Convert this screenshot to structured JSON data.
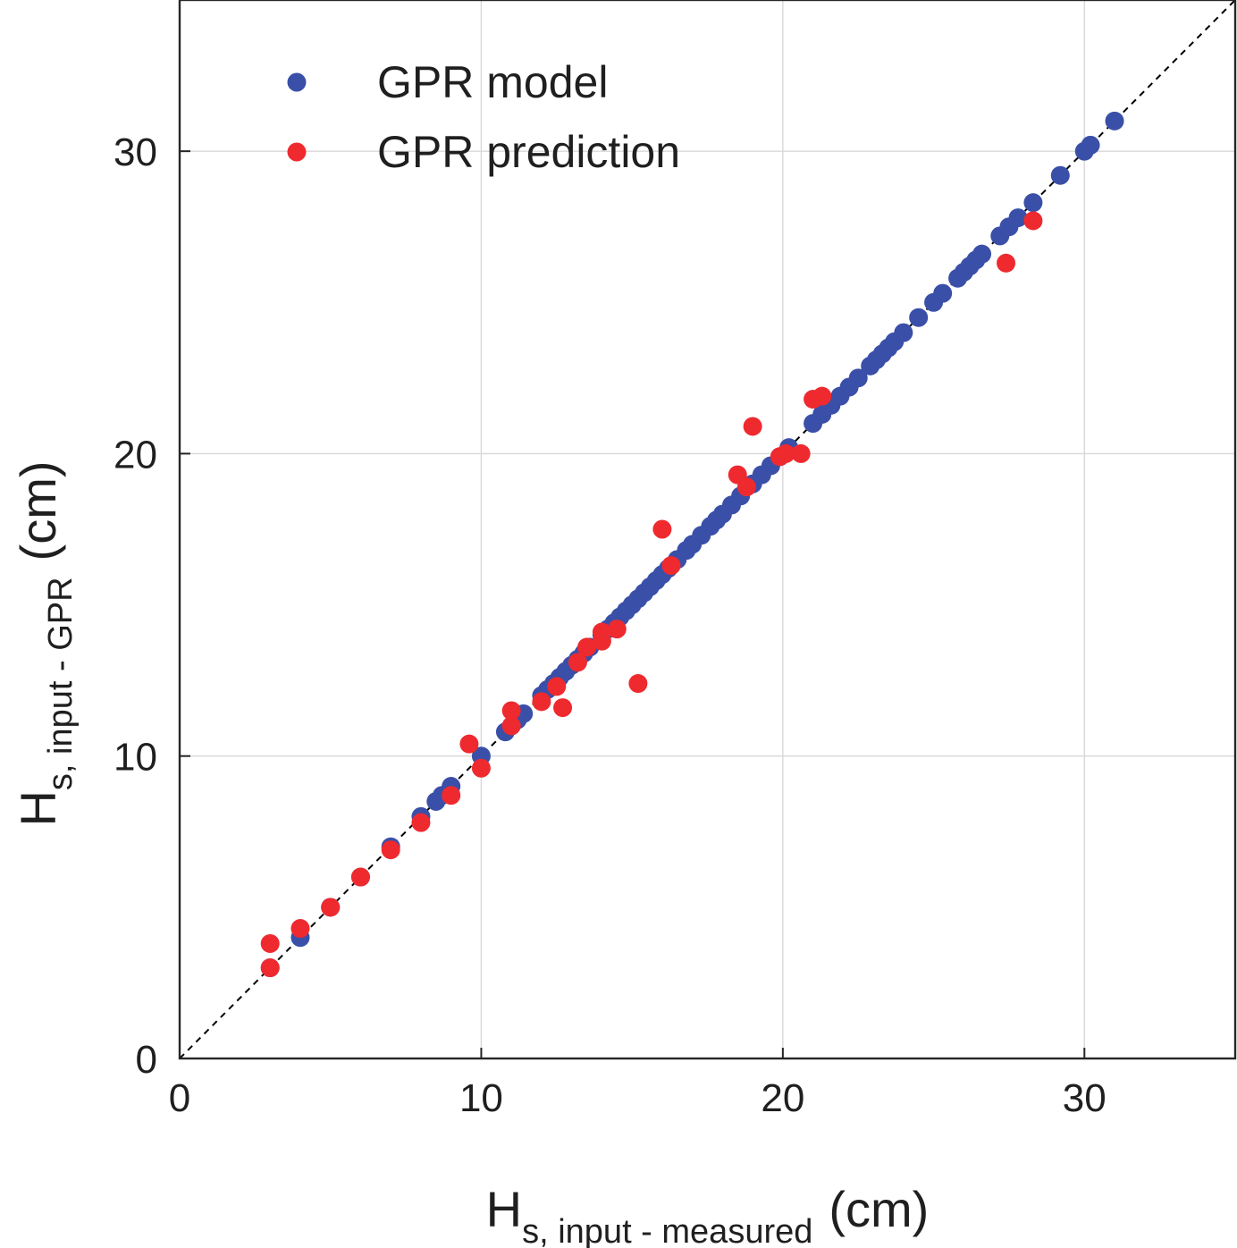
{
  "chart_data": {
    "type": "scatter",
    "title": "",
    "xlabel": {
      "main": "H",
      "sub": "s, input - measured",
      "unit": "(cm)"
    },
    "ylabel": {
      "main": "H",
      "sub": "s, input - GPR",
      "unit": "(cm)"
    },
    "xlim": [
      0,
      35
    ],
    "ylim": [
      0,
      35
    ],
    "xticks": [
      0,
      10,
      20,
      30
    ],
    "yticks": [
      0,
      10,
      20,
      30
    ],
    "xtick_labels": [
      "0",
      "10",
      "20",
      "30"
    ],
    "ytick_labels": [
      "0",
      "10",
      "20",
      "30"
    ],
    "grid": true,
    "reference_line": {
      "style": "dashed",
      "from": [
        0,
        0
      ],
      "to": [
        35,
        35
      ],
      "color": "#000000"
    },
    "legend": {
      "position": "top-left"
    },
    "series": [
      {
        "name": "GPR model",
        "color": "#3a4fa8",
        "points": [
          [
            3.0,
            3.0
          ],
          [
            4.0,
            4.0
          ],
          [
            5.0,
            5.0
          ],
          [
            6.0,
            6.0
          ],
          [
            7.0,
            7.0
          ],
          [
            8.0,
            8.0
          ],
          [
            8.5,
            8.5
          ],
          [
            8.7,
            8.7
          ],
          [
            9.0,
            9.0
          ],
          [
            10.0,
            10.0
          ],
          [
            10.8,
            10.8
          ],
          [
            11.0,
            11.0
          ],
          [
            11.2,
            11.2
          ],
          [
            11.4,
            11.4
          ],
          [
            12.0,
            12.0
          ],
          [
            12.2,
            12.2
          ],
          [
            12.4,
            12.4
          ],
          [
            12.6,
            12.6
          ],
          [
            12.8,
            12.8
          ],
          [
            13.0,
            13.0
          ],
          [
            13.2,
            13.2
          ],
          [
            13.4,
            13.4
          ],
          [
            13.6,
            13.6
          ],
          [
            14.0,
            14.0
          ],
          [
            14.2,
            14.2
          ],
          [
            14.4,
            14.4
          ],
          [
            14.6,
            14.6
          ],
          [
            14.8,
            14.8
          ],
          [
            15.0,
            15.0
          ],
          [
            15.2,
            15.2
          ],
          [
            15.4,
            15.4
          ],
          [
            15.6,
            15.6
          ],
          [
            15.8,
            15.8
          ],
          [
            16.0,
            16.0
          ],
          [
            16.2,
            16.2
          ],
          [
            16.5,
            16.5
          ],
          [
            16.8,
            16.8
          ],
          [
            17.0,
            17.0
          ],
          [
            17.3,
            17.3
          ],
          [
            17.6,
            17.6
          ],
          [
            17.8,
            17.8
          ],
          [
            18.0,
            18.0
          ],
          [
            18.3,
            18.3
          ],
          [
            18.6,
            18.6
          ],
          [
            19.0,
            19.0
          ],
          [
            19.3,
            19.3
          ],
          [
            19.6,
            19.6
          ],
          [
            19.9,
            19.9
          ],
          [
            20.2,
            20.2
          ],
          [
            21.0,
            21.0
          ],
          [
            21.3,
            21.3
          ],
          [
            21.6,
            21.6
          ],
          [
            21.9,
            21.9
          ],
          [
            22.2,
            22.2
          ],
          [
            22.5,
            22.5
          ],
          [
            22.9,
            22.9
          ],
          [
            23.1,
            23.1
          ],
          [
            23.3,
            23.3
          ],
          [
            23.5,
            23.5
          ],
          [
            23.7,
            23.7
          ],
          [
            24.0,
            24.0
          ],
          [
            24.5,
            24.5
          ],
          [
            25.0,
            25.0
          ],
          [
            25.3,
            25.3
          ],
          [
            25.8,
            25.8
          ],
          [
            26.0,
            26.0
          ],
          [
            26.2,
            26.2
          ],
          [
            26.4,
            26.4
          ],
          [
            26.6,
            26.6
          ],
          [
            27.2,
            27.2
          ],
          [
            27.5,
            27.5
          ],
          [
            27.8,
            27.8
          ],
          [
            28.3,
            28.3
          ],
          [
            29.2,
            29.2
          ],
          [
            30.0,
            30.0
          ],
          [
            30.2,
            30.2
          ],
          [
            31.0,
            31.0
          ]
        ]
      },
      {
        "name": "GPR prediction",
        "color": "#ee2a2f",
        "points": [
          [
            3.0,
            3.8
          ],
          [
            3.0,
            3.0
          ],
          [
            4.0,
            4.3
          ],
          [
            5.0,
            5.0
          ],
          [
            6.0,
            6.0
          ],
          [
            7.0,
            6.9
          ],
          [
            8.0,
            7.8
          ],
          [
            9.0,
            8.7
          ],
          [
            9.6,
            10.4
          ],
          [
            10.0,
            9.6
          ],
          [
            11.0,
            11.0
          ],
          [
            11.0,
            11.5
          ],
          [
            12.0,
            11.8
          ],
          [
            12.5,
            12.3
          ],
          [
            12.7,
            11.6
          ],
          [
            13.2,
            13.1
          ],
          [
            13.5,
            13.6
          ],
          [
            14.0,
            14.1
          ],
          [
            14.0,
            13.8
          ],
          [
            14.5,
            14.2
          ],
          [
            15.2,
            12.4
          ],
          [
            16.0,
            17.5
          ],
          [
            16.3,
            16.3
          ],
          [
            18.5,
            19.3
          ],
          [
            18.8,
            18.9
          ],
          [
            19.0,
            20.9
          ],
          [
            19.9,
            19.9
          ],
          [
            20.1,
            20.0
          ],
          [
            20.6,
            20.0
          ],
          [
            21.0,
            21.8
          ],
          [
            21.3,
            21.9
          ],
          [
            27.4,
            26.3
          ],
          [
            28.3,
            27.7
          ]
        ]
      }
    ]
  }
}
